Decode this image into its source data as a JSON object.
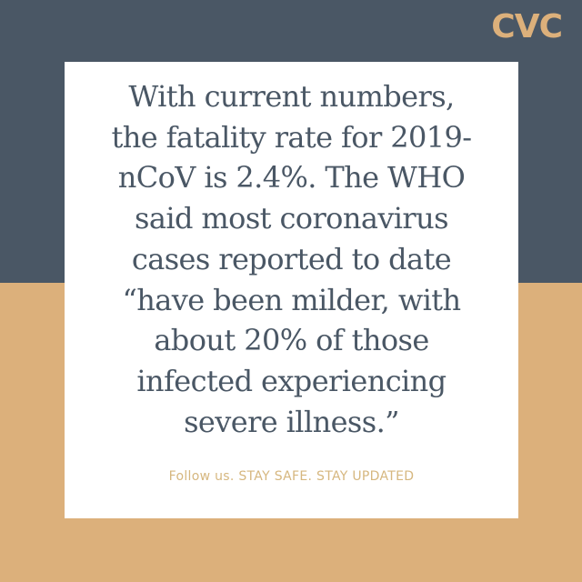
{
  "logo": {
    "text": "CVC"
  },
  "quote": {
    "lines": [
      "With current numbers,",
      "the fatality rate for 2019-",
      "nCoV is 2.4%. The WHO",
      "said most coronavirus",
      "cases reported to date",
      "“have been milder, with",
      "about 20% of those",
      "infected experiencing",
      "severe illness.”"
    ]
  },
  "footer": {
    "text": "Follow us. STAY SAFE. STAY UPDATED"
  },
  "colors": {
    "navy": "#4a5765",
    "tan": "#dcb07b",
    "card": "#ffffff"
  }
}
